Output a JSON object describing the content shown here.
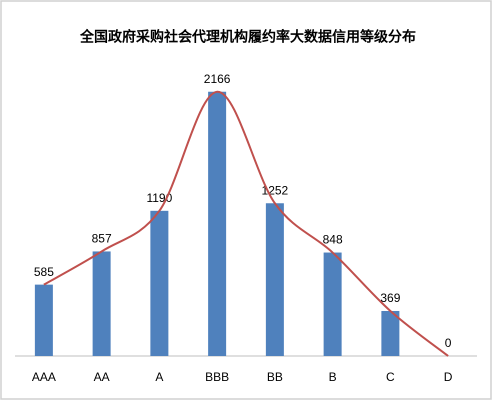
{
  "chart_data": {
    "type": "bar",
    "title": "全国政府采购社会代理机构履约率大数据信用等级分布",
    "categories": [
      "AAA",
      "AA",
      "A",
      "BBB",
      "BB",
      "B",
      "C",
      "D"
    ],
    "values": [
      585,
      857,
      1190,
      2166,
      1252,
      848,
      369,
      0
    ],
    "color": "#4f81bd",
    "trend_line": true,
    "trend_color": "#c0504d",
    "ylim": [
      0,
      2500
    ],
    "grid": false
  }
}
